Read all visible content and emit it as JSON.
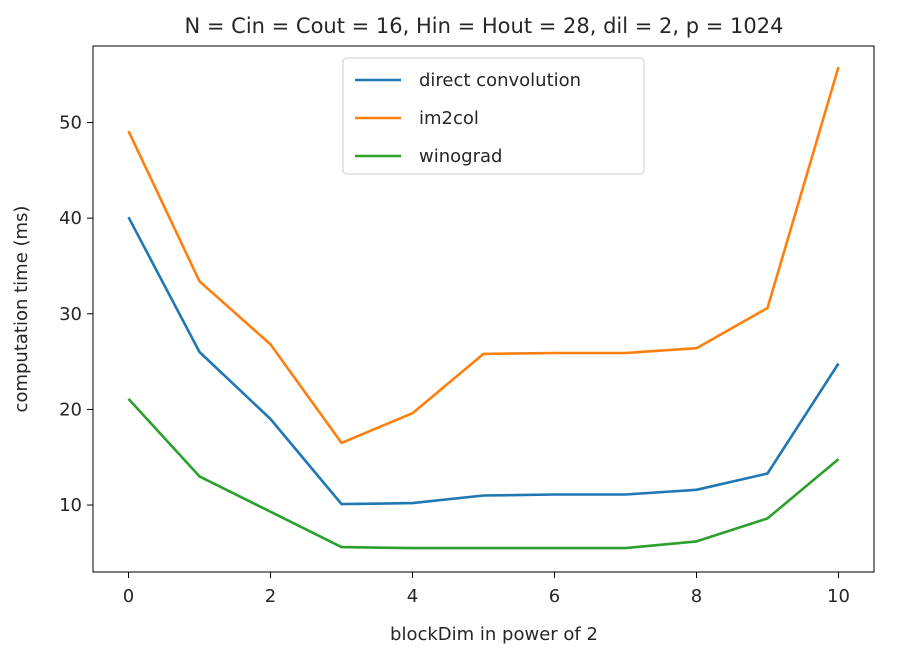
{
  "chart_data": {
    "type": "line",
    "title": "N = Cin = Cout = 16, Hin = Hout = 28, dil = 2, p = 1024",
    "xlabel": "blockDim in power of 2",
    "ylabel": "computation time (ms)",
    "xlim": [
      -0.5,
      10.5
    ],
    "ylim": [
      3,
      58
    ],
    "xticks": [
      0,
      2,
      4,
      6,
      8,
      10
    ],
    "yticks": [
      10,
      20,
      30,
      40,
      50
    ],
    "grid": false,
    "legend_position": "top-center",
    "x": [
      0,
      1,
      2,
      3,
      4,
      5,
      6,
      7,
      8,
      9,
      10
    ],
    "series": [
      {
        "name": "direct convolution",
        "color": "#1f77b4",
        "values": [
          40.1,
          26.0,
          19.0,
          10.1,
          10.2,
          11.0,
          11.1,
          11.1,
          11.6,
          13.3,
          24.8
        ]
      },
      {
        "name": "im2col",
        "color": "#ff7f0e",
        "values": [
          49.1,
          33.4,
          26.8,
          16.5,
          19.6,
          25.8,
          25.9,
          25.9,
          26.4,
          30.6,
          55.8
        ]
      },
      {
        "name": "winograd",
        "color": "#2ca02c",
        "values": [
          21.1,
          13.0,
          9.3,
          5.6,
          5.5,
          5.5,
          5.5,
          5.5,
          6.2,
          8.6,
          14.8
        ]
      }
    ]
  }
}
